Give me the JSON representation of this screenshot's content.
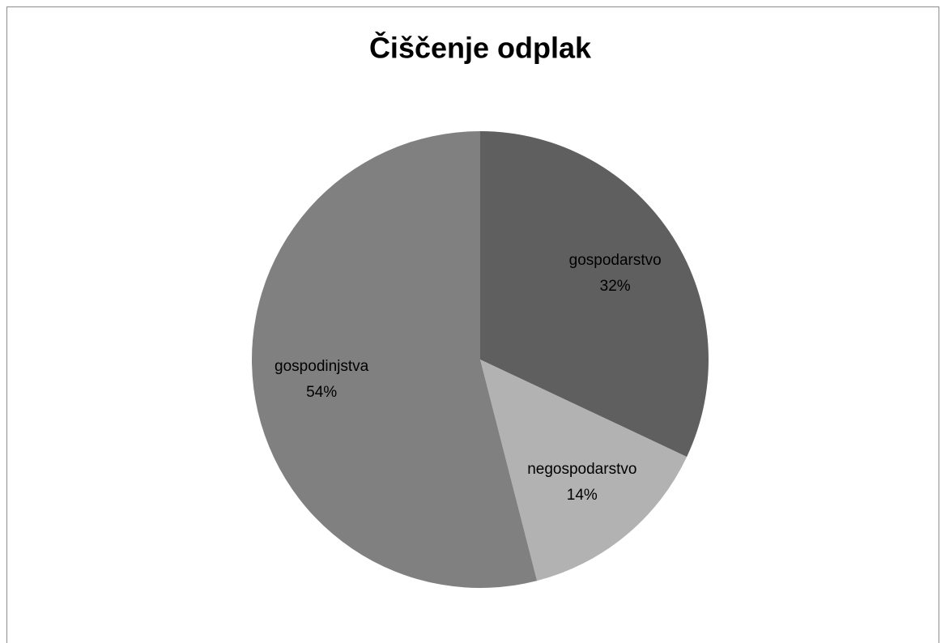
{
  "chart_data": {
    "type": "pie",
    "title": "Čiščenje odplak",
    "categories": [
      "gospodarstvo",
      "negospodarstvo",
      "gospodinjstva"
    ],
    "values": [
      32,
      14,
      54
    ],
    "value_labels": [
      "32%",
      "14%",
      "54%"
    ],
    "colors": [
      "#5f5f5f",
      "#b2b2b2",
      "#808080"
    ]
  }
}
